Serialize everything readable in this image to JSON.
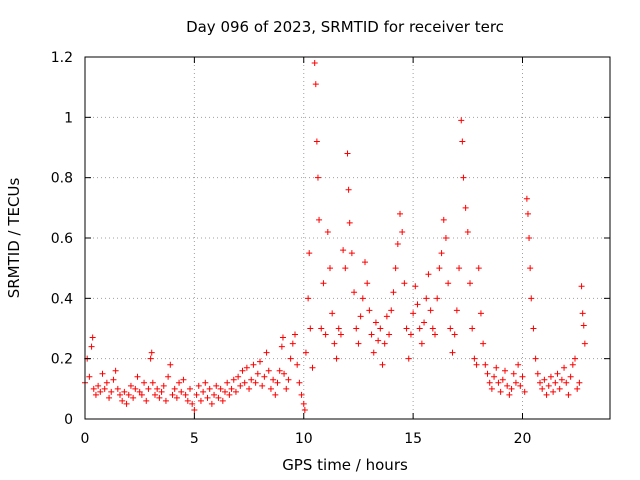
{
  "chart_data": {
    "type": "scatter",
    "title": "Day 096 of 2023, SRMTID for receiver terc",
    "xlabel": "GPS time / hours",
    "ylabel": "SRMTID / TECUs",
    "xlim": [
      0,
      24
    ],
    "ylim": [
      0,
      1.2
    ],
    "x_ticks": [
      0,
      5,
      10,
      15,
      20
    ],
    "x_tick_labels": [
      "0",
      "5",
      "10",
      "15",
      "20"
    ],
    "y_ticks": [
      0,
      0.2,
      0.4,
      0.6,
      0.8,
      1.0,
      1.2
    ],
    "y_tick_labels": [
      "0",
      "0.2",
      "0.4",
      "0.6",
      "0.8",
      "1",
      "1.2"
    ],
    "grid": true,
    "marker": "plus",
    "marker_color": "#ff0000",
    "series": [
      {
        "name": "SRMTID",
        "points": [
          [
            0.0,
            0.12
          ],
          [
            0.1,
            0.2
          ],
          [
            0.2,
            0.14
          ],
          [
            0.3,
            0.24
          ],
          [
            0.35,
            0.27
          ],
          [
            0.4,
            0.1
          ],
          [
            0.5,
            0.08
          ],
          [
            0.6,
            0.11
          ],
          [
            0.7,
            0.09
          ],
          [
            0.8,
            0.15
          ],
          [
            0.9,
            0.1
          ],
          [
            1.0,
            0.12
          ],
          [
            1.1,
            0.07
          ],
          [
            1.2,
            0.09
          ],
          [
            1.3,
            0.13
          ],
          [
            1.4,
            0.16
          ],
          [
            1.5,
            0.1
          ],
          [
            1.6,
            0.08
          ],
          [
            1.7,
            0.06
          ],
          [
            1.8,
            0.09
          ],
          [
            1.9,
            0.05
          ],
          [
            2.0,
            0.08
          ],
          [
            2.1,
            0.11
          ],
          [
            2.2,
            0.07
          ],
          [
            2.3,
            0.1
          ],
          [
            2.4,
            0.14
          ],
          [
            2.5,
            0.09
          ],
          [
            2.6,
            0.08
          ],
          [
            2.7,
            0.12
          ],
          [
            2.8,
            0.06
          ],
          [
            2.9,
            0.1
          ],
          [
            3.0,
            0.2
          ],
          [
            3.05,
            0.22
          ],
          [
            3.1,
            0.12
          ],
          [
            3.2,
            0.08
          ],
          [
            3.3,
            0.1
          ],
          [
            3.4,
            0.07
          ],
          [
            3.5,
            0.09
          ],
          [
            3.6,
            0.11
          ],
          [
            3.7,
            0.06
          ],
          [
            3.8,
            0.14
          ],
          [
            3.9,
            0.18
          ],
          [
            4.0,
            0.08
          ],
          [
            4.1,
            0.1
          ],
          [
            4.2,
            0.07
          ],
          [
            4.3,
            0.12
          ],
          [
            4.4,
            0.09
          ],
          [
            4.5,
            0.13
          ],
          [
            4.6,
            0.08
          ],
          [
            4.7,
            0.06
          ],
          [
            4.8,
            0.1
          ],
          [
            4.9,
            0.05
          ],
          [
            5.0,
            0.03
          ],
          [
            5.1,
            0.08
          ],
          [
            5.2,
            0.11
          ],
          [
            5.3,
            0.06
          ],
          [
            5.4,
            0.09
          ],
          [
            5.5,
            0.12
          ],
          [
            5.6,
            0.07
          ],
          [
            5.7,
            0.1
          ],
          [
            5.8,
            0.05
          ],
          [
            5.9,
            0.08
          ],
          [
            6.0,
            0.11
          ],
          [
            6.1,
            0.07
          ],
          [
            6.2,
            0.1
          ],
          [
            6.3,
            0.06
          ],
          [
            6.4,
            0.09
          ],
          [
            6.5,
            0.12
          ],
          [
            6.6,
            0.08
          ],
          [
            6.7,
            0.1
          ],
          [
            6.8,
            0.13
          ],
          [
            6.9,
            0.09
          ],
          [
            7.0,
            0.14
          ],
          [
            7.1,
            0.11
          ],
          [
            7.2,
            0.16
          ],
          [
            7.3,
            0.12
          ],
          [
            7.4,
            0.17
          ],
          [
            7.5,
            0.1
          ],
          [
            7.6,
            0.13
          ],
          [
            7.7,
            0.18
          ],
          [
            7.8,
            0.12
          ],
          [
            7.9,
            0.15
          ],
          [
            8.0,
            0.19
          ],
          [
            8.1,
            0.11
          ],
          [
            8.2,
            0.14
          ],
          [
            8.3,
            0.22
          ],
          [
            8.4,
            0.16
          ],
          [
            8.5,
            0.1
          ],
          [
            8.6,
            0.13
          ],
          [
            8.7,
            0.08
          ],
          [
            8.8,
            0.12
          ],
          [
            8.9,
            0.16
          ],
          [
            9.0,
            0.24
          ],
          [
            9.05,
            0.27
          ],
          [
            9.1,
            0.15
          ],
          [
            9.2,
            0.1
          ],
          [
            9.3,
            0.13
          ],
          [
            9.4,
            0.2
          ],
          [
            9.5,
            0.25
          ],
          [
            9.6,
            0.28
          ],
          [
            9.7,
            0.18
          ],
          [
            9.8,
            0.12
          ],
          [
            9.9,
            0.08
          ],
          [
            10.0,
            0.05
          ],
          [
            10.05,
            0.03
          ],
          [
            10.1,
            0.22
          ],
          [
            10.2,
            0.4
          ],
          [
            10.25,
            0.55
          ],
          [
            10.3,
            0.3
          ],
          [
            10.4,
            0.17
          ],
          [
            10.5,
            1.18
          ],
          [
            10.55,
            1.11
          ],
          [
            10.6,
            0.92
          ],
          [
            10.65,
            0.8
          ],
          [
            10.7,
            0.66
          ],
          [
            10.8,
            0.3
          ],
          [
            10.9,
            0.45
          ],
          [
            11.0,
            0.28
          ],
          [
            11.1,
            0.62
          ],
          [
            11.2,
            0.5
          ],
          [
            11.3,
            0.35
          ],
          [
            11.4,
            0.25
          ],
          [
            11.5,
            0.2
          ],
          [
            11.6,
            0.3
          ],
          [
            11.7,
            0.28
          ],
          [
            11.8,
            0.56
          ],
          [
            11.9,
            0.5
          ],
          [
            12.0,
            0.88
          ],
          [
            12.05,
            0.76
          ],
          [
            12.1,
            0.65
          ],
          [
            12.2,
            0.55
          ],
          [
            12.3,
            0.42
          ],
          [
            12.4,
            0.3
          ],
          [
            12.5,
            0.25
          ],
          [
            12.6,
            0.34
          ],
          [
            12.7,
            0.4
          ],
          [
            12.8,
            0.52
          ],
          [
            12.9,
            0.45
          ],
          [
            13.0,
            0.36
          ],
          [
            13.1,
            0.28
          ],
          [
            13.2,
            0.22
          ],
          [
            13.3,
            0.32
          ],
          [
            13.4,
            0.26
          ],
          [
            13.5,
            0.3
          ],
          [
            13.6,
            0.18
          ],
          [
            13.7,
            0.25
          ],
          [
            13.8,
            0.34
          ],
          [
            13.9,
            0.28
          ],
          [
            14.0,
            0.36
          ],
          [
            14.1,
            0.42
          ],
          [
            14.2,
            0.5
          ],
          [
            14.3,
            0.58
          ],
          [
            14.4,
            0.68
          ],
          [
            14.5,
            0.62
          ],
          [
            14.6,
            0.45
          ],
          [
            14.7,
            0.3
          ],
          [
            14.8,
            0.2
          ],
          [
            14.9,
            0.28
          ],
          [
            15.0,
            0.35
          ],
          [
            15.1,
            0.44
          ],
          [
            15.2,
            0.38
          ],
          [
            15.3,
            0.3
          ],
          [
            15.4,
            0.25
          ],
          [
            15.5,
            0.32
          ],
          [
            15.6,
            0.4
          ],
          [
            15.7,
            0.48
          ],
          [
            15.8,
            0.36
          ],
          [
            15.9,
            0.3
          ],
          [
            16.0,
            0.28
          ],
          [
            16.1,
            0.4
          ],
          [
            16.2,
            0.5
          ],
          [
            16.3,
            0.55
          ],
          [
            16.4,
            0.66
          ],
          [
            16.5,
            0.6
          ],
          [
            16.6,
            0.45
          ],
          [
            16.7,
            0.3
          ],
          [
            16.8,
            0.22
          ],
          [
            16.9,
            0.28
          ],
          [
            17.0,
            0.36
          ],
          [
            17.1,
            0.5
          ],
          [
            17.2,
            0.99
          ],
          [
            17.25,
            0.92
          ],
          [
            17.3,
            0.8
          ],
          [
            17.4,
            0.7
          ],
          [
            17.5,
            0.62
          ],
          [
            17.6,
            0.45
          ],
          [
            17.7,
            0.3
          ],
          [
            17.8,
            0.2
          ],
          [
            17.9,
            0.18
          ],
          [
            18.0,
            0.5
          ],
          [
            18.1,
            0.35
          ],
          [
            18.2,
            0.25
          ],
          [
            18.3,
            0.18
          ],
          [
            18.4,
            0.15
          ],
          [
            18.5,
            0.12
          ],
          [
            18.6,
            0.1
          ],
          [
            18.7,
            0.14
          ],
          [
            18.8,
            0.17
          ],
          [
            18.9,
            0.12
          ],
          [
            19.0,
            0.09
          ],
          [
            19.1,
            0.13
          ],
          [
            19.2,
            0.16
          ],
          [
            19.3,
            0.11
          ],
          [
            19.4,
            0.08
          ],
          [
            19.5,
            0.1
          ],
          [
            19.6,
            0.15
          ],
          [
            19.7,
            0.12
          ],
          [
            19.8,
            0.18
          ],
          [
            19.9,
            0.11
          ],
          [
            20.0,
            0.14
          ],
          [
            20.1,
            0.09
          ],
          [
            20.2,
            0.73
          ],
          [
            20.25,
            0.68
          ],
          [
            20.3,
            0.6
          ],
          [
            20.35,
            0.5
          ],
          [
            20.4,
            0.4
          ],
          [
            20.5,
            0.3
          ],
          [
            20.6,
            0.2
          ],
          [
            20.7,
            0.15
          ],
          [
            20.8,
            0.12
          ],
          [
            20.9,
            0.1
          ],
          [
            21.0,
            0.13
          ],
          [
            21.1,
            0.08
          ],
          [
            21.2,
            0.11
          ],
          [
            21.3,
            0.14
          ],
          [
            21.4,
            0.09
          ],
          [
            21.5,
            0.12
          ],
          [
            21.6,
            0.15
          ],
          [
            21.7,
            0.1
          ],
          [
            21.8,
            0.13
          ],
          [
            21.9,
            0.17
          ],
          [
            22.0,
            0.12
          ],
          [
            22.1,
            0.08
          ],
          [
            22.2,
            0.14
          ],
          [
            22.3,
            0.18
          ],
          [
            22.4,
            0.2
          ],
          [
            22.5,
            0.1
          ],
          [
            22.6,
            0.12
          ],
          [
            22.7,
            0.44
          ],
          [
            22.75,
            0.35
          ],
          [
            22.8,
            0.31
          ],
          [
            22.85,
            0.25
          ]
        ]
      }
    ]
  }
}
